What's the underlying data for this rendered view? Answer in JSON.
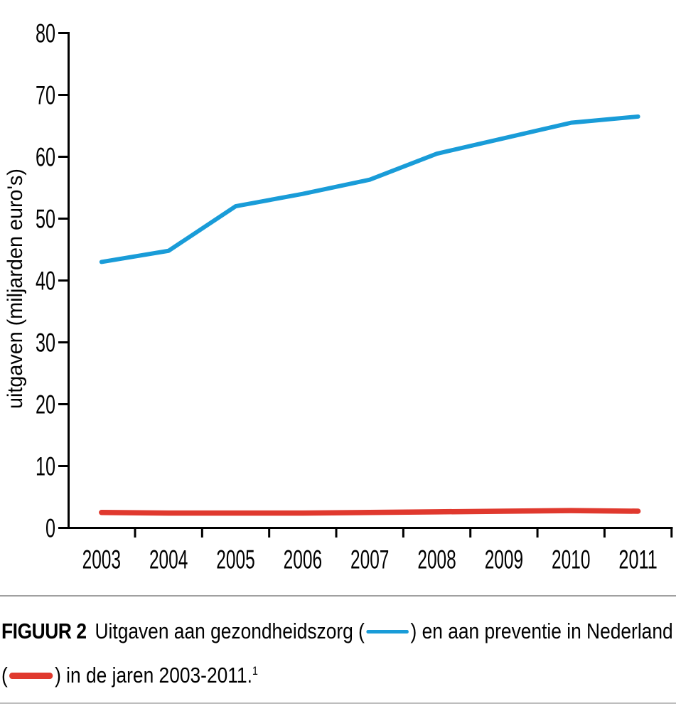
{
  "chart_data": {
    "type": "line",
    "title": "",
    "xlabel": "",
    "ylabel": "uitgaven (miljarden euro's)",
    "x": [
      2003,
      2004,
      2005,
      2006,
      2007,
      2008,
      2009,
      2010,
      2011
    ],
    "series": [
      {
        "name": "gezondheidszorg",
        "color": "#199CD8",
        "stroke_width": 6,
        "values": [
          43,
          44.8,
          52,
          54,
          56.3,
          60.5,
          63,
          65.5,
          66.5
        ]
      },
      {
        "name": "preventie",
        "color": "#E0392E",
        "stroke_width": 7.5,
        "values": [
          2.5,
          2.4,
          2.4,
          2.4,
          2.5,
          2.6,
          2.7,
          2.8,
          2.7
        ]
      }
    ],
    "ylim": [
      0,
      80
    ],
    "yticks": [
      0,
      10,
      20,
      30,
      40,
      50,
      60,
      70,
      80
    ],
    "grid": false,
    "legend_position": "inline-in-caption"
  },
  "caption": {
    "label": "FIGUUR 2",
    "line1_part1": "Uitgaven aan gezondheidszorg (",
    "line1_part2": ") en aan preventie in Nederland",
    "line2_part1": "(",
    "line2_part2": ") in de jaren 2003-2011.",
    "footnote_marker": "1"
  }
}
